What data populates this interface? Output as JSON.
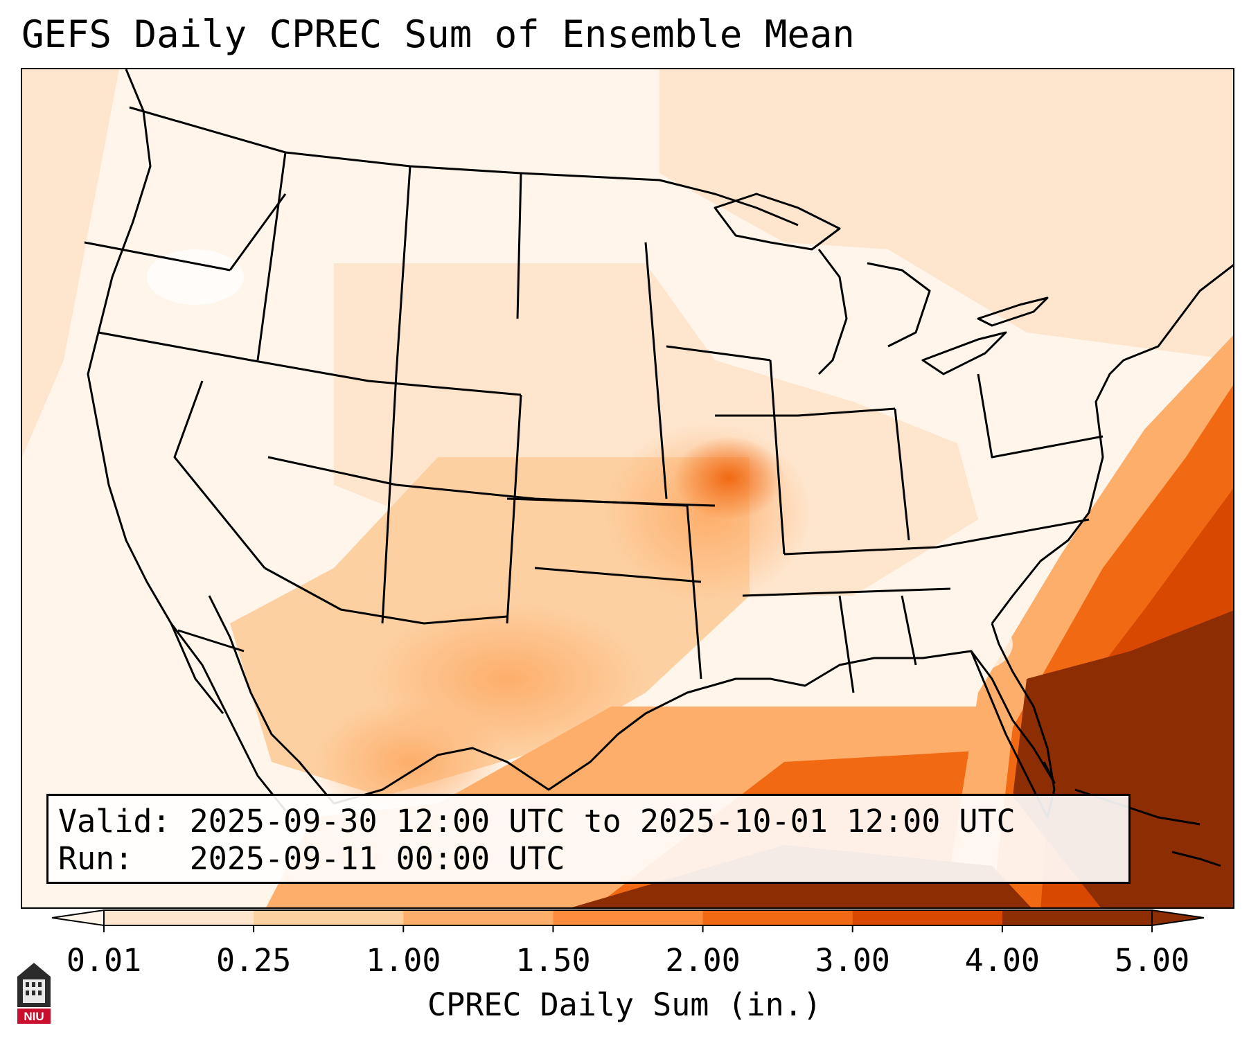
{
  "title": "GEFS Daily CPREC Sum of Ensemble Mean",
  "info": {
    "valid_line": "Valid: 2025-09-30 12:00 UTC to 2025-10-01 12:00 UTC",
    "run_line": "Run:   2025-09-11 00:00 UTC"
  },
  "colorbar": {
    "label": "CPREC Daily Sum (in.)",
    "ticks": [
      "0.01",
      "0.25",
      "1.00",
      "1.50",
      "2.00",
      "3.00",
      "4.00",
      "5.00"
    ],
    "colors": [
      "#fff5eb",
      "#fee6ce",
      "#fdd0a2",
      "#fdae6b",
      "#fd8d3c",
      "#f16913",
      "#d94801",
      "#8c2d04"
    ],
    "extend": "both"
  },
  "logo": {
    "text": "NIU"
  }
}
